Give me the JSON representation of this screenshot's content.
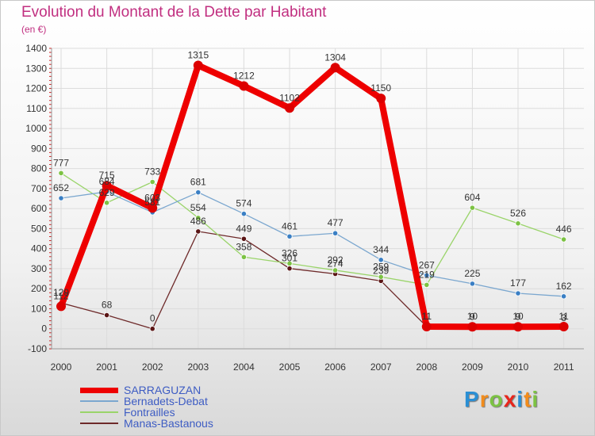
{
  "title": "Evolution du Montant de la Dette par Habitant",
  "subtitle": "(en €)",
  "logo": {
    "text": "Proxiti",
    "letters": [
      "P",
      "r",
      "o",
      "x",
      "i",
      "t",
      "i"
    ],
    "colors": [
      "#2a8fd4",
      "#f28c1c",
      "#7cc243",
      "#e8261c",
      "#2a8fd4",
      "#f28c1c",
      "#7cc243"
    ]
  },
  "chart_data": {
    "type": "line",
    "title": "Evolution du Montant de la Dette par Habitant",
    "ylabel": "(en €)",
    "xlabel": "",
    "ylim": [
      -100,
      1400
    ],
    "y_ticks": [
      -100,
      0,
      100,
      200,
      300,
      400,
      500,
      600,
      700,
      800,
      900,
      1000,
      1100,
      1200,
      1300,
      1400
    ],
    "grid": true,
    "categories": [
      "2000",
      "2001",
      "2002",
      "2003",
      "2004",
      "2005",
      "2006",
      "2007",
      "2008",
      "2009",
      "2010",
      "2011"
    ],
    "series": [
      {
        "name": "SARRAGUZAN",
        "color": "#ee0000",
        "marker": "#dd0000",
        "values": [
          112,
          715,
          603,
          1315,
          1212,
          1102,
          1304,
          1150,
          11,
          10,
          10,
          11
        ]
      },
      {
        "name": "Bernadets-Debat",
        "color": "#7ba7cf",
        "marker": "#3a7fc4",
        "values": [
          652,
          684,
          581,
          681,
          574,
          461,
          477,
          344,
          267,
          225,
          177,
          162
        ]
      },
      {
        "name": "Fontrailles",
        "color": "#9ad46a",
        "marker": "#7cc243",
        "values": [
          777,
          629,
          733,
          554,
          358,
          326,
          292,
          259,
          219,
          604,
          526,
          446
        ]
      },
      {
        "name": "Manas-Bastanous",
        "color": "#6e2a2a",
        "marker": "#5a1515",
        "values": [
          129,
          68,
          0,
          486,
          449,
          301,
          274,
          239,
          11,
          9,
          9,
          3
        ]
      }
    ]
  }
}
